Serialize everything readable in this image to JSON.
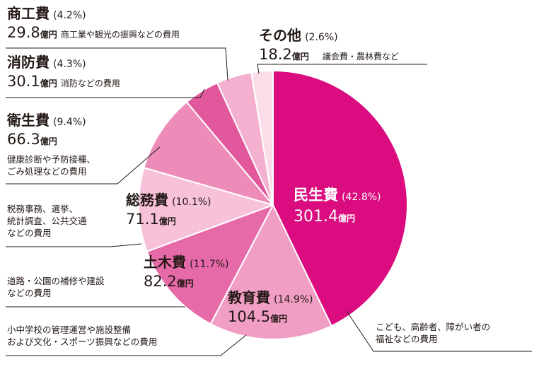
{
  "chart_data": {
    "type": "pie",
    "slices": [
      {
        "name": "民生費",
        "percent": "(42.8%)",
        "value": 301.4,
        "value_text": "301.4",
        "unit": "億円",
        "description": "こども、高齢者、障がい者の福祉などの費用",
        "description_lines": [
          "こども、高齢者、障がい者の",
          "福祉などの費用"
        ],
        "color": "#DA0C7F"
      },
      {
        "name": "教育費",
        "percent": "(14.9%)",
        "value": 104.5,
        "value_text": "104.5",
        "unit": "億円",
        "description": "小中学校の管理運営や施設整備および文化・スポーツ振興などの費用",
        "description_lines": [
          "小中学校の管理運営や施設整備",
          "および文化・スポーツ振興などの費用"
        ],
        "color": "#F09EC4"
      },
      {
        "name": "土木費",
        "percent": "(11.7%)",
        "value": 82.2,
        "value_text": "82.2",
        "unit": "億円",
        "description": "道路・公園の補修や建設などの費用",
        "description_lines": [
          "道路・公園の補修や建設",
          "などの費用"
        ],
        "color": "#E76AA8"
      },
      {
        "name": "総務費",
        "percent": "(10.1%)",
        "value": 71.1,
        "value_text": "71.1",
        "unit": "億円",
        "description": "税務事務、選挙、統計調査、公共交通などの費用",
        "description_lines": [
          "税務事務、選挙、",
          "統計調査、公共交通",
          "などの費用"
        ],
        "color": "#F6C1D9"
      },
      {
        "name": "衛生費",
        "percent": "(9.4%)",
        "value": 66.3,
        "value_text": "66.3",
        "unit": "億円",
        "description": "健康診断や予防接種、ごみ処理などの費用",
        "description_lines": [
          "健康診断や予防接種、",
          "ごみ処理などの費用"
        ],
        "color": "#EE8CB9"
      },
      {
        "name": "消防費",
        "percent": "(4.3%)",
        "value": 30.1,
        "value_text": "30.1",
        "unit": "億円",
        "description": "消防などの費用",
        "description_lines": [
          "消防などの費用"
        ],
        "color": "#E2589C"
      },
      {
        "name": "商工費",
        "percent": "(4.2%)",
        "value": 29.8,
        "value_text": "29.8",
        "unit": "億円",
        "description": "商工業や観光の振興などの費用",
        "description_lines": [
          "商工業や観光の振興などの費用"
        ],
        "color": "#F4B1CF"
      },
      {
        "name": "その他",
        "percent": "(2.6%)",
        "value": 18.2,
        "value_text": "18.2",
        "unit": "億円",
        "description": "議会費・農林費など",
        "description_lines": [
          "議会費・農林費など"
        ],
        "color": "#FADDE9"
      }
    ]
  }
}
